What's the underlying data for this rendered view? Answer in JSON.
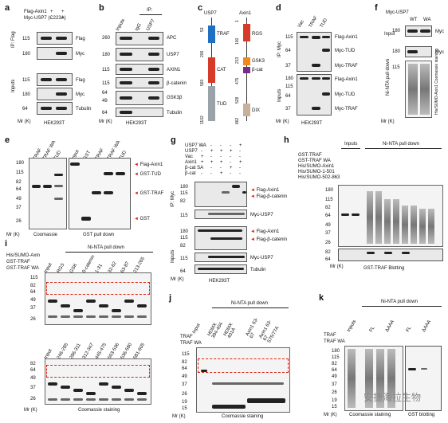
{
  "panels": {
    "a": {
      "label": "a",
      "treatments": [
        "Flag-Axin1",
        "Myc-USP7 (C223A)"
      ],
      "signs": [
        [
          "+",
          "+"
        ],
        [
          "-",
          "+"
        ]
      ],
      "sections": [
        "IP: Flag",
        "Inputs"
      ],
      "markers_ip": [
        "115",
        "180"
      ],
      "markers_inputs": [
        "115",
        "180",
        "64"
      ],
      "bands_ip": [
        "Flag",
        "Myc"
      ],
      "bands_inputs": [
        "Flag",
        "Myc",
        "Tubulin"
      ],
      "mr": "Mr (K)",
      "cell": "HEK293T"
    },
    "b": {
      "label": "b",
      "ip_header": "IP:",
      "columns": [
        "Inputs",
        "IgG",
        "USP7"
      ],
      "markers": [
        "260",
        "180",
        "115",
        "115",
        "64",
        "49",
        "64"
      ],
      "bands": [
        "APC",
        "USP7",
        "AXIN1",
        "β-catenin",
        "GSK3β",
        "Tubulin"
      ],
      "mr": "Mr (K)",
      "cell": "HEK293T"
    },
    "c": {
      "label": "c",
      "usp7": {
        "name": "USP7",
        "domains": [
          "TRAF",
          "CAT",
          "TUD"
        ],
        "positions": [
          "53",
          "206",
          "560",
          "1102"
        ]
      },
      "axin1": {
        "name": "Axin1",
        "domains": [
          "RGS",
          "GSK3",
          "β-cat",
          "DIX"
        ],
        "positions": [
          "1",
          "100",
          "213",
          "475",
          "528",
          "862"
        ]
      }
    },
    "d": {
      "label": "d",
      "columns": [
        "Vac",
        "TRAF",
        "TUD"
      ],
      "sections": [
        "IP: Myc",
        "Inputs"
      ],
      "markers": [
        "115",
        "64",
        "37",
        "180",
        "115",
        "64",
        "37"
      ],
      "bands": [
        "Flag-Axin1",
        "Myc-TUD",
        "Myc-TRAF",
        "Flag-Axin1",
        "Myc-TUD",
        "Myc-TRAF"
      ],
      "mr": "Mr (K)",
      "cell": "HEK293T"
    },
    "e": {
      "label": "e",
      "columns_left": [
        "TRAF",
        "TRAF WA",
        "TUD"
      ],
      "columns_right": [
        "Input",
        "GST",
        "TRAF",
        "TRAF WA",
        "TUD"
      ],
      "markers": [
        "180",
        "115",
        "82",
        "64",
        "49",
        "37",
        "26"
      ],
      "arrows": [
        "Flag-Axin1",
        "GST-TUD",
        "GST-TRAF",
        "GST"
      ],
      "captions": [
        "Coomassie",
        "GST pull down"
      ],
      "mr": "Mr (K)"
    },
    "f": {
      "label": "f",
      "header": "Myc-USP7",
      "columns": [
        "WT",
        "WA"
      ],
      "markers": [
        "180",
        "180",
        "115"
      ],
      "bands": [
        "Myc",
        "Myc"
      ],
      "sections": [
        "Input",
        "Ni-NTA pull down"
      ],
      "staining": "His/SUMO-Axin1 Coomassie staining",
      "mr": "Mr (K)"
    },
    "g": {
      "label": "g",
      "treatments": [
        "USP7 WA",
        "USP7",
        "Vac",
        "Axin1",
        "β-cat SA",
        "β-cat"
      ],
      "signs": [
        [
          "-",
          "-",
          "-",
          "-",
          "+"
        ],
        [
          "-",
          "+",
          "+",
          "+",
          "-"
        ],
        [
          "+",
          "-",
          "-",
          "-",
          "-"
        ],
        [
          "+",
          "+",
          "+",
          "-",
          "+"
        ],
        [
          "-",
          "-",
          "-",
          "+",
          "-"
        ],
        [
          "-",
          "-",
          "+",
          "-",
          "-"
        ]
      ],
      "sections": [
        "IP: Myc",
        "Inputs"
      ],
      "markers": [
        "180",
        "115",
        "82",
        "115",
        "180",
        "115",
        "82",
        "115",
        "64"
      ],
      "bands": [
        "Flag-Axin1",
        "Flag-β-catenin",
        "Myc-USP7",
        "Flag-Axin1",
        "Flag-β-catenin",
        "Myc-USP7",
        "Tubulin"
      ],
      "mr": "Mr (K)",
      "cell": "HEK293T"
    },
    "h": {
      "label": "h",
      "section_headers": [
        "Inputs",
        "Ni-NTA pull down"
      ],
      "treatments": [
        "GST-TRAF",
        "GST-TRAF WA",
        "His/SUMO-Axin1",
        "His/SUMO-1-501",
        "His/SUMO-502-863"
      ],
      "markers": [
        "180",
        "115",
        "82",
        "64",
        "49",
        "37",
        "26",
        "82",
        "64"
      ],
      "caption": "GST-TRAF Blotting",
      "mr": "Mr (K)"
    },
    "i": {
      "label": "i",
      "header": "Ni-NTA pull down",
      "treatments": [
        "His/SUMO-Axin",
        "GST-TRAF",
        "GST-TRAF WA"
      ],
      "columns_top": [
        "Input",
        "RGS",
        "GSK",
        "β-catenin",
        "1-31",
        "32-62",
        "63-87",
        "213-265"
      ],
      "columns_bottom": [
        "Input",
        "246-285",
        "286-311",
        "312-347",
        "445-475",
        "503-536",
        "536-580",
        "581-605"
      ],
      "markers_top": [
        "115",
        "82",
        "64",
        "49",
        "37",
        "26"
      ],
      "markers_bottom": [
        "82",
        "64",
        "49",
        "37",
        "26"
      ],
      "caption": "Coomassie staining",
      "mr": "Mr (K)"
    },
    "j": {
      "label": "j",
      "header": "Ni-NTA pull down",
      "treatments": [
        "TRAF",
        "TRAF WA"
      ],
      "columns": [
        "Input",
        "HDMX 394-404",
        "HDMX 401A",
        "Axin1 63-67",
        "Axin1 63-67 S75/77A"
      ],
      "markers": [
        "115",
        "82",
        "64",
        "49",
        "37",
        "26",
        "19",
        "15"
      ],
      "caption": "Coomassie staining",
      "mr": "Mr (K)"
    },
    "k": {
      "label": "k",
      "header": "Ni-NTA pull down",
      "treatments": [
        "TRAF",
        "TRAF WA"
      ],
      "columns": [
        "Inputs",
        "FL",
        "ΔAAA",
        "FL",
        "ΔAAA"
      ],
      "markers": [
        "180",
        "115",
        "82",
        "64",
        "49",
        "37",
        "26",
        "19",
        "15"
      ],
      "captions": [
        "Coomassie staining",
        "GST blotting"
      ],
      "mr": "Mr (K)"
    }
  },
  "watermark": "安捷海拉生物",
  "colors": {
    "dashed_box": "#dd2211",
    "traf": "#1f6fc2",
    "cat": "#d83a2a",
    "tud": "#9aa3aa",
    "rgs": "#d83a2a",
    "gsk3": "#f08a1a",
    "bcat": "#7a2c8c",
    "dix": "#c9b09a"
  }
}
